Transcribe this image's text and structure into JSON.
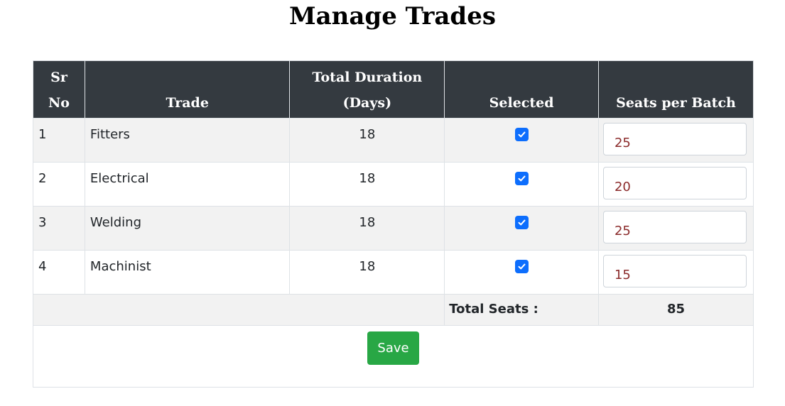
{
  "page": {
    "title": "Manage Trades"
  },
  "table": {
    "headers": {
      "sr_no_line1": "Sr",
      "sr_no_line2": "No",
      "trade": "Trade",
      "duration_line1": "Total Duration",
      "duration_line2": "(Days)",
      "selected": "Selected",
      "seats": "Seats per Batch"
    },
    "rows": [
      {
        "sr": "1",
        "trade": "Fitters",
        "duration": "18",
        "selected": true,
        "seats": "25"
      },
      {
        "sr": "2",
        "trade": "Electrical",
        "duration": "18",
        "selected": true,
        "seats": "20"
      },
      {
        "sr": "3",
        "trade": "Welding",
        "duration": "18",
        "selected": true,
        "seats": "25"
      },
      {
        "sr": "4",
        "trade": "Machinist",
        "duration": "18",
        "selected": true,
        "seats": "15"
      }
    ],
    "total_label": "Total Seats :",
    "total_value": "85"
  },
  "actions": {
    "save_label": "Save"
  },
  "colors": {
    "header_bg": "#343a40",
    "checkbox": "#0d6efd",
    "save_button": "#28a745",
    "input_text": "#8b2b2b"
  },
  "icons": {
    "checkbox": "check-icon"
  }
}
